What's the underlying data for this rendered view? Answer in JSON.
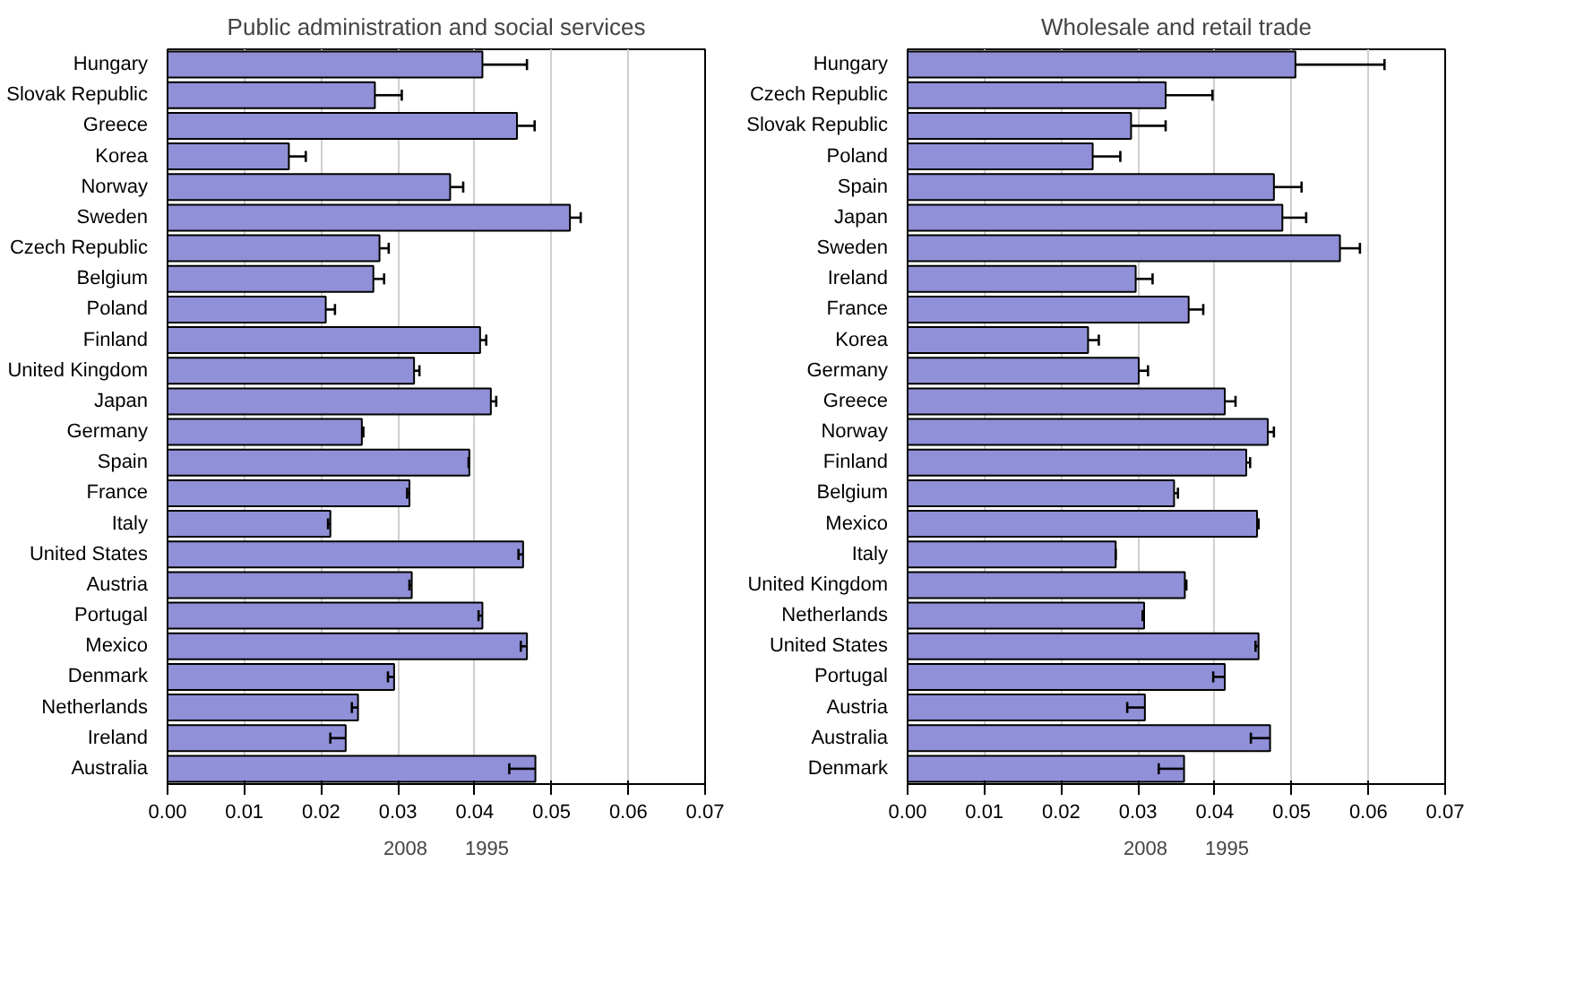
{
  "chart_data": [
    {
      "type": "bar",
      "orientation": "horizontal",
      "title": "Public administration and social services",
      "categories": [
        "Hungary",
        "Slovak Republic",
        "Greece",
        "Korea",
        "Norway",
        "Sweden",
        "Czech Republic",
        "Belgium",
        "Poland",
        "Finland",
        "United Kingdom",
        "Japan",
        "Germany",
        "Spain",
        "France",
        "Italy",
        "United States",
        "Austria",
        "Portugal",
        "Mexico",
        "Denmark",
        "Netherlands",
        "Ireland",
        "Australia"
      ],
      "series": [
        {
          "name": "2008",
          "color": "#9090d8",
          "values": [
            0.041,
            0.027,
            0.0455,
            0.0158,
            0.0368,
            0.0524,
            0.0276,
            0.0268,
            0.0206,
            0.0407,
            0.0321,
            0.0421,
            0.0253,
            0.0393,
            0.0315,
            0.0212,
            0.0463,
            0.0318,
            0.041,
            0.0468,
            0.0295,
            0.0248,
            0.0232,
            0.0479
          ],
          "errors": [
            [
              0.041,
              0.0468
            ],
            [
              0.027,
              0.0305
            ],
            [
              0.0455,
              0.0478
            ],
            [
              0.0158,
              0.018
            ],
            [
              0.0368,
              0.0385
            ],
            [
              0.0524,
              0.0538
            ],
            [
              0.0276,
              0.0288
            ],
            [
              0.0268,
              0.0282
            ],
            [
              0.0206,
              0.0218
            ],
            [
              0.0407,
              0.0415
            ],
            [
              0.0321,
              0.0328
            ],
            [
              0.0421,
              0.0428
            ],
            [
              0.0253,
              0.0255
            ],
            [
              0.0392,
              0.0393
            ],
            [
              0.0312,
              0.0315
            ],
            [
              0.0209,
              0.0212
            ],
            [
              0.0457,
              0.0463
            ],
            [
              0.0315,
              0.0318
            ],
            [
              0.0405,
              0.041
            ],
            [
              0.046,
              0.0468
            ],
            [
              0.0287,
              0.0295
            ],
            [
              0.024,
              0.0248
            ],
            [
              0.0212,
              0.0232
            ],
            [
              0.0445,
              0.0479
            ]
          ]
        }
      ],
      "annotations": [
        "1995"
      ],
      "xlim": [
        0,
        0.07
      ],
      "xticks": [
        {
          "value": 0,
          "label": "0.00"
        },
        0.01,
        0.02,
        0.03,
        0.04,
        0.05,
        0.06,
        0.07
      ],
      "grid": "x",
      "legend": "bottom"
    },
    {
      "type": "bar",
      "orientation": "horizontal",
      "title": "Wholesale and retail trade",
      "categories": [
        "Hungary",
        "Czech Republic",
        "Slovak Republic",
        "Poland",
        "Spain",
        "Japan",
        "Sweden",
        "Ireland",
        "France",
        "Korea",
        "Germany",
        "Greece",
        "Norway",
        "Finland",
        "Belgium",
        "Mexico",
        "Italy",
        "United Kingdom",
        "Netherlands",
        "United States",
        "Portugal",
        "Austria",
        "Australia",
        "Denmark"
      ],
      "series": [
        {
          "name": "2008",
          "color": "#9090d8",
          "values": [
            0.0505,
            0.0336,
            0.0291,
            0.0241,
            0.0477,
            0.0488,
            0.0563,
            0.0297,
            0.0366,
            0.0235,
            0.0301,
            0.0413,
            0.0469,
            0.0441,
            0.0347,
            0.0455,
            0.0271,
            0.0361,
            0.0308,
            0.0457,
            0.0413,
            0.0309,
            0.0472,
            0.036
          ],
          "errors": [
            [
              0.0505,
              0.0621
            ],
            [
              0.0336,
              0.0397
            ],
            [
              0.0291,
              0.0336
            ],
            [
              0.0241,
              0.0277
            ],
            [
              0.0477,
              0.0513
            ],
            [
              0.0488,
              0.0519
            ],
            [
              0.0563,
              0.0589
            ],
            [
              0.0297,
              0.0319
            ],
            [
              0.0366,
              0.0385
            ],
            [
              0.0235,
              0.0249
            ],
            [
              0.0301,
              0.0313
            ],
            [
              0.0413,
              0.0427
            ],
            [
              0.0469,
              0.0477
            ],
            [
              0.0441,
              0.0446
            ],
            [
              0.0347,
              0.0352
            ],
            [
              0.0455,
              0.0457
            ],
            [
              0.0271,
              0.0271
            ],
            [
              0.0361,
              0.0363
            ],
            [
              0.0306,
              0.0308
            ],
            [
              0.0453,
              0.0457
            ],
            [
              0.0398,
              0.0413
            ],
            [
              0.0286,
              0.0309
            ],
            [
              0.0447,
              0.0472
            ],
            [
              0.0327,
              0.036
            ]
          ]
        }
      ],
      "annotations": [
        "1995"
      ],
      "xlim": [
        0,
        0.07
      ],
      "xticks": [
        {
          "value": 0,
          "label": "0.00"
        },
        0.01,
        0.02,
        0.03,
        0.04,
        0.05,
        0.06,
        0.07
      ],
      "grid": "x",
      "legend": "bottom"
    }
  ]
}
